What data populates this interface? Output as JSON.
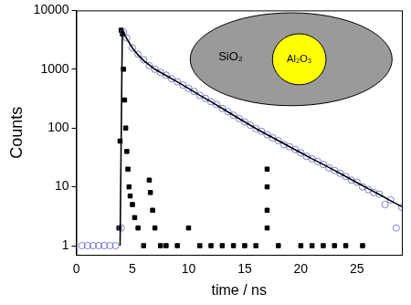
{
  "chart_data": {
    "type": "scatter",
    "x_label": "time / ns",
    "y_label": "Counts",
    "log": "y",
    "grid": false,
    "xlim": [
      0,
      29
    ],
    "xticks": [
      0,
      5,
      10,
      15,
      20,
      25
    ],
    "ylim": [
      0.7,
      10000
    ],
    "yticks": [
      1,
      10,
      100,
      1000,
      10000
    ],
    "annotations": [
      {
        "text": "SiO₂",
        "color": "#9a9a9a"
      },
      {
        "text": "Al₂O₃",
        "color": "#ffff00"
      }
    ],
    "series": [
      {
        "color": "#6060d0",
        "marker": "open_circle",
        "x": [
          0.5,
          1.0,
          1.5,
          2.0,
          2.5,
          3.0,
          3.5,
          4.0,
          4.2,
          4.5,
          5.0,
          5.5,
          6.0,
          6.5,
          7.0,
          7.5,
          8.0,
          8.5,
          9.0,
          9.5,
          10.0,
          10.5,
          11.0,
          11.5,
          12.0,
          12.5,
          13.0,
          13.5,
          14.0,
          14.5,
          15.0,
          15.5,
          16.0,
          16.5,
          17.0,
          17.5,
          18.0,
          18.5,
          19.0,
          19.5,
          20.0,
          20.5,
          21.0,
          21.5,
          22.0,
          22.5,
          23.0,
          23.5,
          24.0,
          24.5,
          25.0,
          25.5,
          26.0,
          26.5,
          27.0,
          27.5,
          28.0,
          28.5,
          29.0
        ],
        "values": [
          1,
          1,
          1,
          1,
          1,
          1,
          1,
          2,
          4300,
          3400,
          2300,
          1800,
          1450,
          1150,
          1000,
          880,
          790,
          690,
          610,
          540,
          470,
          420,
          360,
          320,
          280,
          250,
          215,
          190,
          165,
          145,
          127,
          112,
          98,
          88,
          77,
          68,
          61,
          52,
          48,
          43,
          38,
          33,
          30,
          27,
          24,
          21,
          19,
          17,
          15,
          13,
          12,
          10,
          9,
          8,
          7.5,
          5,
          6,
          2,
          4.5
        ]
      },
      {
        "color": "#000000",
        "marker": "square",
        "x": [
          3.8,
          3.9,
          4.0,
          4.1,
          4.2,
          4.3,
          4.4,
          4.5,
          4.6,
          4.7,
          4.8,
          5.0,
          5.2,
          5.5,
          6.0,
          6.5,
          6.6,
          6.8,
          7.0,
          7.5,
          8.0,
          9.0,
          10.0,
          11.0,
          12.0,
          13.0,
          14.0,
          15.0,
          16.0,
          17.0,
          17.0,
          17.0,
          17.0,
          18.0,
          20.0,
          21.0,
          22.0,
          23.0,
          24.0,
          25.5
        ],
        "values": [
          2,
          60,
          4600,
          4000,
          1000,
          300,
          100,
          40,
          20,
          10,
          7,
          5,
          3,
          2,
          1,
          13,
          8,
          4,
          2,
          1,
          1,
          1,
          2,
          1,
          1,
          1,
          1,
          1,
          1,
          20,
          10,
          4,
          2,
          1,
          1,
          1,
          1,
          1,
          1,
          1
        ]
      },
      {
        "color": "#000000",
        "type": "line",
        "line_style": "solid",
        "x": [
          3.9,
          4.1,
          4.5,
          5.0,
          5.5,
          6.0,
          7.0,
          8.0,
          9.0,
          10.0,
          11.0,
          12.0,
          13.0,
          14.0,
          15.0,
          16.0,
          17.0,
          18.0,
          19.0,
          20.0,
          21.0,
          22.0,
          23.0,
          24.0,
          25.0,
          26.0,
          27.0,
          28.0,
          29.0
        ],
        "values": [
          1,
          4500,
          3300,
          2300,
          1750,
          1400,
          1000,
          780,
          610,
          470,
          360,
          280,
          215,
          165,
          127,
          98,
          77,
          61,
          48,
          38,
          30,
          24,
          19,
          15,
          11.8,
          9.3,
          7.4,
          5.8,
          4.6
        ]
      }
    ]
  }
}
